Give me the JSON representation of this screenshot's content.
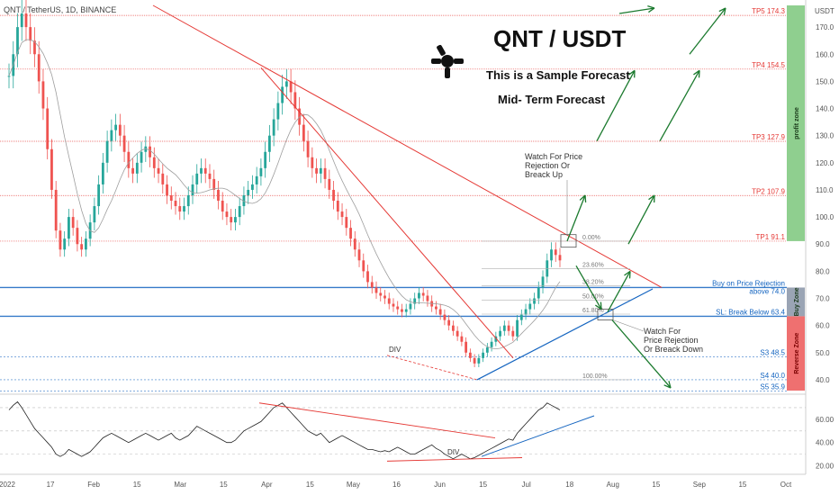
{
  "symbol_header": "QNT / TetherUS, 1D, BINANCE",
  "title": "QNT / USDT",
  "subtitle1": "This is a Sample Forecast",
  "subtitle2": "Mid- Term Forecast",
  "colors": {
    "up": "#26a69a",
    "down": "#ef5350",
    "trend_red": "#e53935",
    "support_blue": "#1565c0",
    "target_green": "#1b7a2e",
    "profit_zone": "#8fcf8f",
    "buy_zone": "#9aa4b4",
    "reverse_zone": "#ef7070"
  },
  "annotations": {
    "top_note": [
      "Watch For Price",
      "Rejection Or",
      "Breack Up"
    ],
    "bottom_note": [
      "Watch For",
      "Price Rejection",
      "Or Breack Down"
    ],
    "div_price": "DIV",
    "div_rsi": "DIV"
  },
  "fib_labels": [
    "0.00%",
    "23.60%",
    "38.20%",
    "50.00%",
    "61.80%",
    "100.00%"
  ],
  "chart_data": [
    {
      "type": "candlestick",
      "price_scale_label": "USDT",
      "ylim": [
        36,
        178
      ],
      "y_ticks": [
        40,
        50,
        60,
        70,
        80,
        90,
        100,
        110,
        120,
        130,
        140,
        150,
        160,
        170
      ],
      "x_ticks": [
        "2022",
        "17",
        "Feb",
        "15",
        "Mar",
        "15",
        "Apr",
        "15",
        "May",
        "16",
        "Jun",
        "15",
        "Jul",
        "18",
        "Aug",
        "15",
        "Sep",
        "15",
        "Oct"
      ],
      "levels": [
        {
          "label": "TP5 174.3",
          "value": 174.3,
          "color": "#e53935"
        },
        {
          "label": "TP4 154.5",
          "value": 154.5,
          "color": "#e53935"
        },
        {
          "label": "TP3 127.9",
          "value": 127.9,
          "color": "#e53935"
        },
        {
          "label": "TP2 107.9",
          "value": 107.9,
          "color": "#e53935"
        },
        {
          "label": "TP1 91.1",
          "value": 91.1,
          "color": "#e53935"
        },
        {
          "label": "Buy on Price Rejection",
          "label2": "above 74.0",
          "value": 74.0,
          "color": "#1565c0"
        },
        {
          "label": "SL: Break Below 63.4",
          "value": 63.4,
          "color": "#1565c0"
        },
        {
          "label": "S3 48.5",
          "value": 48.5,
          "color": "#1565c0"
        },
        {
          "label": "S4 40.0",
          "value": 40.0,
          "color": "#1565c0"
        },
        {
          "label": "S5 35.9",
          "value": 35.9,
          "color": "#1565c0"
        }
      ],
      "zones": [
        {
          "label": "profit zone",
          "from": 91.1,
          "to": 178
        },
        {
          "label": "Buy Zone",
          "from": 63.4,
          "to": 74.0
        },
        {
          "label": "Reverse Zone",
          "from": 36,
          "to": 63.4
        }
      ],
      "close_series": [
        152,
        160,
        170,
        175,
        170,
        165,
        160,
        150,
        140,
        125,
        110,
        95,
        88,
        92,
        100,
        96,
        90,
        88,
        92,
        98,
        104,
        112,
        120,
        128,
        132,
        134,
        130,
        124,
        118,
        116,
        120,
        124,
        126,
        122,
        118,
        116,
        112,
        108,
        106,
        104,
        102,
        104,
        108,
        112,
        116,
        118,
        116,
        114,
        110,
        106,
        102,
        100,
        98,
        100,
        104,
        108,
        110,
        112,
        115,
        118,
        124,
        130,
        136,
        142,
        148,
        150,
        146,
        140,
        134,
        128,
        122,
        118,
        116,
        118,
        114,
        110,
        106,
        102,
        100,
        96,
        92,
        88,
        84,
        80,
        76,
        74,
        72,
        71,
        70,
        68,
        67,
        66,
        65,
        66,
        68,
        70,
        72,
        71,
        69,
        67,
        66,
        64,
        62,
        60,
        58,
        56,
        54,
        50,
        48,
        46,
        48,
        50,
        52,
        54,
        56,
        58,
        60,
        58,
        56,
        62,
        64,
        66,
        68,
        70,
        74,
        78,
        84,
        88,
        86,
        84
      ]
    },
    {
      "type": "line",
      "name": "RSI",
      "ylim": [
        15,
        80
      ],
      "y_ticks": [
        20,
        40,
        60
      ],
      "values": [
        68,
        72,
        75,
        70,
        64,
        58,
        52,
        48,
        44,
        40,
        36,
        30,
        28,
        30,
        34,
        32,
        30,
        28,
        30,
        32,
        36,
        40,
        44,
        46,
        48,
        46,
        44,
        42,
        40,
        42,
        44,
        46,
        48,
        46,
        44,
        42,
        44,
        46,
        48,
        44,
        42,
        44,
        46,
        50,
        54,
        52,
        50,
        48,
        46,
        44,
        42,
        40,
        40,
        42,
        46,
        50,
        52,
        54,
        56,
        58,
        62,
        66,
        70,
        72,
        74,
        70,
        66,
        62,
        58,
        54,
        50,
        48,
        46,
        48,
        44,
        40,
        42,
        44,
        46,
        44,
        42,
        40,
        38,
        36,
        34,
        34,
        33,
        32,
        33,
        32,
        34,
        36,
        34,
        32,
        30,
        30,
        32,
        34,
        36,
        38,
        35,
        33,
        30,
        28,
        26,
        28,
        30,
        28,
        26,
        27,
        29,
        31,
        33,
        35,
        37,
        39,
        41,
        43,
        42,
        48,
        52,
        56,
        60,
        64,
        68,
        70,
        74,
        72,
        70,
        68
      ]
    }
  ]
}
